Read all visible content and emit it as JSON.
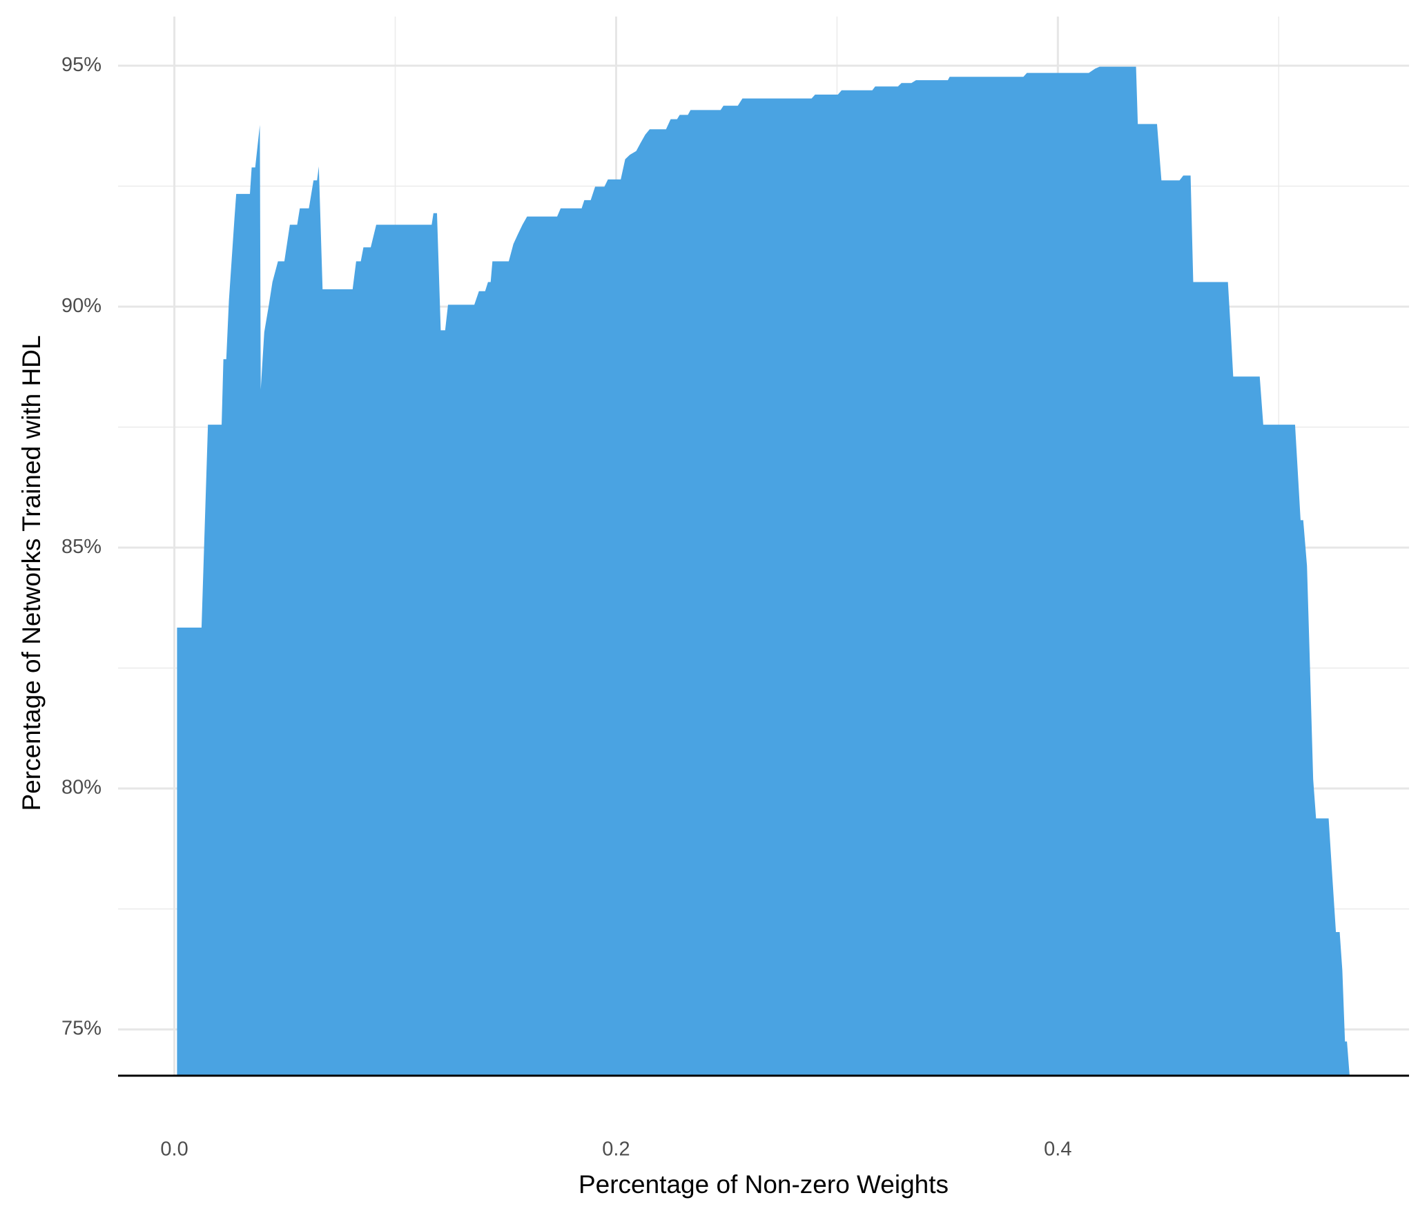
{
  "chart_data": {
    "type": "area",
    "x_label": "Percentage of Non-zero Weights",
    "y_label": "Percentage of Networks Trained with HDL",
    "color": "#4AA3E2",
    "grid": true,
    "minor_grid": true,
    "xlim": [
      -0.0255,
      0.559
    ],
    "ylim": [
      74.04,
      96.02
    ],
    "xticks": [
      {
        "value": 0,
        "label": "0.0"
      },
      0.2,
      0.4
    ],
    "yticks": [
      {
        "value": 75,
        "label": "75%"
      },
      {
        "value": 80,
        "label": "80%"
      },
      {
        "value": 85,
        "label": "85%"
      },
      {
        "value": 90,
        "label": "90%"
      },
      {
        "value": 95,
        "label": "95%"
      }
    ],
    "x": [
      0.0012,
      0.0123,
      0.0152,
      0.0214,
      0.0222,
      0.0235,
      0.0247,
      0.0272,
      0.028,
      0.0342,
      0.035,
      0.0366,
      0.0387,
      0.0391,
      0.0407,
      0.0428,
      0.0444,
      0.0469,
      0.0498,
      0.0523,
      0.0556,
      0.0568,
      0.0609,
      0.063,
      0.0646,
      0.0654,
      0.0671,
      0.0807,
      0.0823,
      0.0844,
      0.0856,
      0.0889,
      0.0914,
      0.1165,
      0.1173,
      0.1189,
      0.1206,
      0.1226,
      0.1239,
      0.1358,
      0.1379,
      0.1407,
      0.142,
      0.1432,
      0.144,
      0.1514,
      0.1535,
      0.1556,
      0.1576,
      0.1597,
      0.1733,
      0.1749,
      0.1844,
      0.1856,
      0.1885,
      0.1905,
      0.1947,
      0.1963,
      0.2021,
      0.2041,
      0.2062,
      0.2091,
      0.2111,
      0.2132,
      0.2152,
      0.2226,
      0.2247,
      0.2276,
      0.2288,
      0.2325,
      0.2337,
      0.2473,
      0.2486,
      0.2551,
      0.2572,
      0.2885,
      0.2901,
      0.3004,
      0.3021,
      0.316,
      0.3173,
      0.3276,
      0.3292,
      0.3337,
      0.3358,
      0.3502,
      0.351,
      0.3844,
      0.386,
      0.414,
      0.4169,
      0.4189,
      0.4354,
      0.4362,
      0.4449,
      0.4469,
      0.4551,
      0.4568,
      0.4601,
      0.4613,
      0.477,
      0.4782,
      0.4794,
      0.4914,
      0.493,
      0.5074,
      0.5099,
      0.5111,
      0.5128,
      0.514,
      0.5156,
      0.5169,
      0.5226,
      0.5243,
      0.5259,
      0.5276,
      0.5288,
      0.53,
      0.5309,
      0.5321
    ],
    "values": [
      83.34,
      83.34,
      87.55,
      87.55,
      88.91,
      88.91,
      90.13,
      91.83,
      92.34,
      92.34,
      92.89,
      92.89,
      93.77,
      88.28,
      89.47,
      90.04,
      90.51,
      90.94,
      90.94,
      91.7,
      91.7,
      92.04,
      92.04,
      92.62,
      92.62,
      92.91,
      90.36,
      90.36,
      90.94,
      90.94,
      91.23,
      91.23,
      91.7,
      91.7,
      91.94,
      91.94,
      89.51,
      89.51,
      90.04,
      90.04,
      90.32,
      90.32,
      90.51,
      90.51,
      90.94,
      90.94,
      91.3,
      91.51,
      91.7,
      91.87,
      91.87,
      92.04,
      92.04,
      92.21,
      92.21,
      92.49,
      92.49,
      92.64,
      92.64,
      93.06,
      93.15,
      93.23,
      93.4,
      93.57,
      93.68,
      93.68,
      93.89,
      93.89,
      93.98,
      93.98,
      94.08,
      94.08,
      94.17,
      94.17,
      94.32,
      94.32,
      94.4,
      94.4,
      94.49,
      94.49,
      94.57,
      94.57,
      94.64,
      94.64,
      94.7,
      94.7,
      94.77,
      94.77,
      94.85,
      94.85,
      94.94,
      94.98,
      94.98,
      93.79,
      93.79,
      92.62,
      92.62,
      92.72,
      92.72,
      90.51,
      90.51,
      89.57,
      88.55,
      88.55,
      87.55,
      87.55,
      85.57,
      85.57,
      84.62,
      82.77,
      80.19,
      79.38,
      79.38,
      78.15,
      77.02,
      77.02,
      76.23,
      74.75,
      74.75,
      74.04
    ]
  }
}
